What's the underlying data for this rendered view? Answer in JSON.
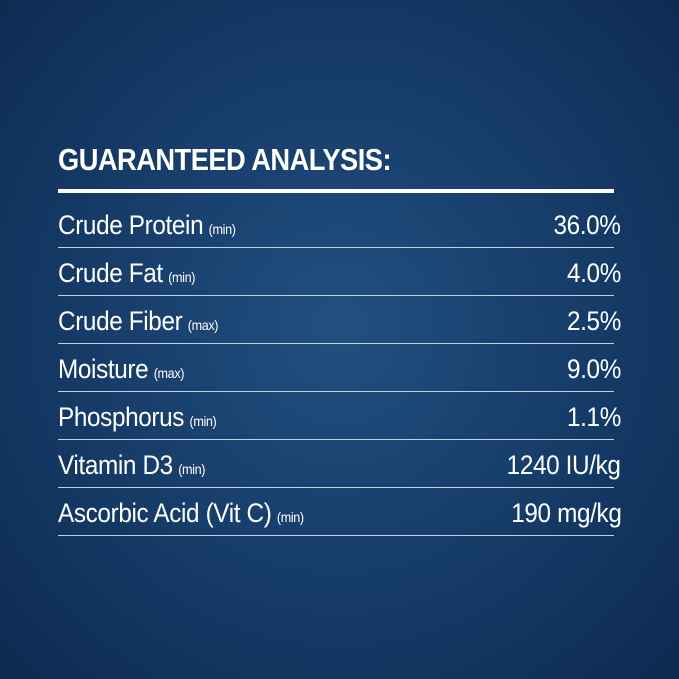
{
  "title": "GUARANTEED ANALYSIS:",
  "table": {
    "rows": [
      [
        "Crude Protein",
        "(min)",
        "36.0%"
      ],
      [
        "Crude Fat",
        "(min)",
        "4.0%"
      ],
      [
        "Crude Fiber",
        "(max)",
        "2.5%"
      ],
      [
        "Moisture",
        "(max)",
        "9.0%"
      ],
      [
        "Phosphorus",
        "(min)",
        "1.1%"
      ],
      [
        "Vitamin D3",
        "(min)",
        "1240 IU/kg"
      ],
      [
        "Ascorbic Acid (Vit C)",
        "(min)",
        "190 mg/kg"
      ]
    ]
  }
}
